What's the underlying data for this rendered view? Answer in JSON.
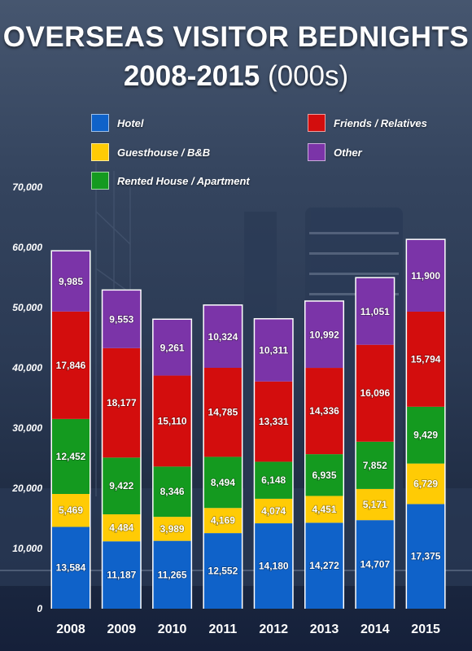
{
  "title": {
    "line1": "OVERSEAS VISITOR BEDNIGHTS",
    "line2_main": "2008-2015",
    "line2_sub": " (000s)"
  },
  "legend": [
    {
      "label": "Hotel",
      "color": "#0f62c9"
    },
    {
      "label": "Friends / Relatives",
      "color": "#d30d0d"
    },
    {
      "label": "Guesthouse / B&B",
      "color": "#ffcb05"
    },
    {
      "label": "Other",
      "color": "#7b34a8"
    },
    {
      "label": "Rented House / Apartment",
      "color": "#149a1f"
    }
  ],
  "chart_data": {
    "type": "bar",
    "stacked": true,
    "categories": [
      "2008",
      "2009",
      "2010",
      "2011",
      "2012",
      "2013",
      "2014",
      "2015"
    ],
    "series": [
      {
        "name": "Hotel",
        "color": "#0f62c9",
        "values": [
          13584,
          11187,
          11265,
          12552,
          14180,
          14272,
          14707,
          17375
        ],
        "labels": [
          "13,584",
          "11,187",
          "11,265",
          "12,552",
          "14,180",
          "14,272",
          "14,707",
          "17,375"
        ]
      },
      {
        "name": "Guesthouse / B&B",
        "color": "#ffcb05",
        "values": [
          5469,
          4484,
          3989,
          4169,
          4074,
          4451,
          5171,
          6729
        ],
        "labels": [
          "5,469",
          "4,484",
          "3,989",
          "4,169",
          "4,074",
          "4,451",
          "5,171",
          "6,729"
        ]
      },
      {
        "name": "Rented House / Apartment",
        "color": "#149a1f",
        "values": [
          12452,
          9422,
          8346,
          8494,
          6148,
          6935,
          7852,
          9429
        ],
        "labels": [
          "12,452",
          "9,422",
          "8,346",
          "8,494",
          "6,148",
          "6,935",
          "7,852",
          "9,429"
        ]
      },
      {
        "name": "Friends / Relatives",
        "color": "#d30d0d",
        "values": [
          17846,
          18177,
          15110,
          14785,
          13331,
          14336,
          16096,
          15794
        ],
        "labels": [
          "17,846",
          "18,177",
          "15,110",
          "14,785",
          "13,331",
          "14,336",
          "16,096",
          "15,794"
        ]
      },
      {
        "name": "Other",
        "color": "#7b34a8",
        "values": [
          9985,
          9553,
          9261,
          10324,
          10311,
          10992,
          11051,
          11900
        ],
        "labels": [
          "9,985",
          "9,553",
          "9,261",
          "10,324",
          "10,311",
          "10,992",
          "11,051",
          "11,900"
        ]
      }
    ],
    "ylim": [
      0,
      70000
    ],
    "yticks": [
      "0",
      "10,000",
      "20,000",
      "30,000",
      "40,000",
      "50,000",
      "60,000",
      "70,000"
    ],
    "ytick_values": [
      0,
      10000,
      20000,
      30000,
      40000,
      50000,
      60000,
      70000
    ],
    "grid": false,
    "legend_position": "top"
  }
}
